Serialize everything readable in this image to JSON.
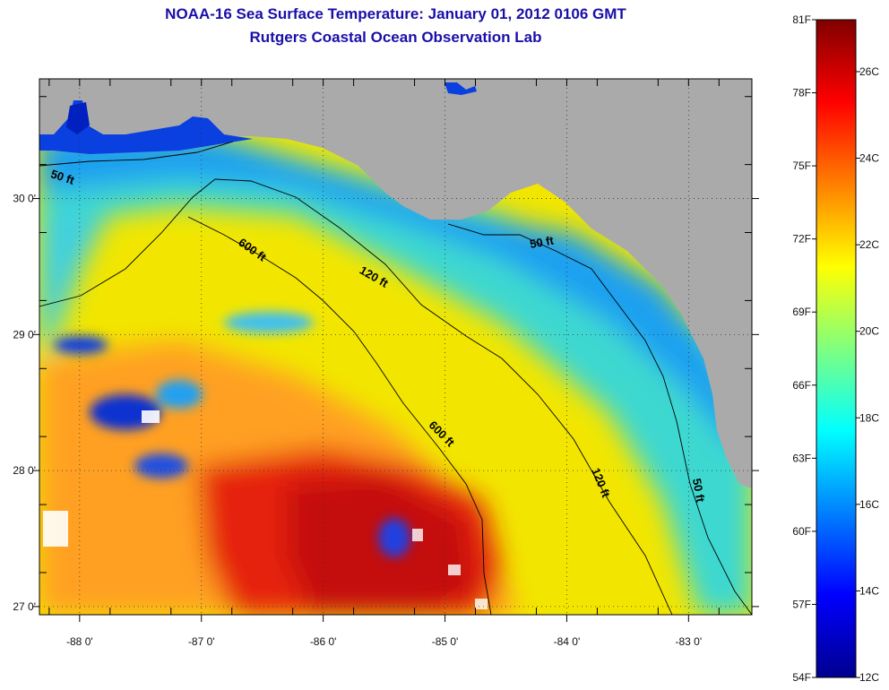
{
  "header": {
    "title": "NOAA-16 Sea Surface Temperature:  January 01, 2012 0106 GMT",
    "subtitle": "Rutgers Coastal Ocean Observation Lab"
  },
  "map": {
    "lon_range": [
      -88.33,
      -82.48
    ],
    "lat_range": [
      26.94,
      30.88
    ],
    "lon_ticks": [
      -88,
      -87,
      -86,
      -85,
      -84,
      -83
    ],
    "lon_tick_labels": [
      "-88 0'",
      "-87 0'",
      "-86 0'",
      "-85 0'",
      "-84 0'",
      "-83 0'"
    ],
    "lat_ticks": [
      27,
      28,
      29,
      30
    ],
    "lat_tick_labels": [
      "27 0'",
      "28 0'",
      "29 0'",
      "30 0'"
    ],
    "grid": "dotted",
    "land_color": "#aaaaaa",
    "contour_labels": [
      {
        "text": "50 ft",
        "lon": -88.15,
        "lat": 30.13,
        "angle": 18
      },
      {
        "text": "600 ft",
        "lon": -86.6,
        "lat": 29.6,
        "angle": 35
      },
      {
        "text": "120 ft",
        "lon": -85.6,
        "lat": 29.4,
        "angle": 30
      },
      {
        "text": "50 ft",
        "lon": -84.2,
        "lat": 29.65,
        "angle": -10
      },
      {
        "text": "600 ft",
        "lon": -85.05,
        "lat": 28.25,
        "angle": 45
      },
      {
        "text": "120 ft",
        "lon": -83.75,
        "lat": 27.9,
        "angle": 68
      },
      {
        "text": "50 ft",
        "lon": -82.95,
        "lat": 27.85,
        "angle": 80
      }
    ]
  },
  "colorbar": {
    "f_labels": [
      "81F",
      "78F",
      "75F",
      "72F",
      "69F",
      "66F",
      "63F",
      "60F",
      "57F",
      "54F"
    ],
    "c_labels": [
      "26C",
      "24C",
      "22C",
      "20C",
      "18C",
      "16C",
      "14C",
      "12C"
    ],
    "temp_range_c": [
      12,
      27.2
    ]
  },
  "colors": {
    "title": "#1a0fa8",
    "land": "#aaaaaa",
    "water_cold": "#0010d0",
    "water_warm": "#c00000"
  }
}
